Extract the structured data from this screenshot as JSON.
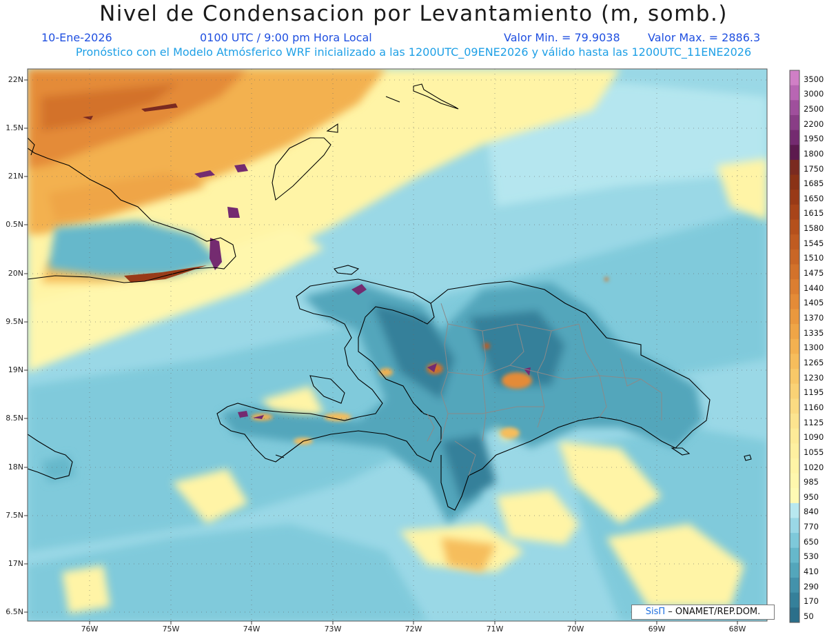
{
  "header": {
    "title": "Nivel de Condensacion por Levantamiento (m, somb.)",
    "date": "10-Ene-2026",
    "time": "0100 UTC / 9:00 pm Hora Local",
    "min_label": "Valor Min. = 79.9038",
    "max_label": "Valor Max. = 2886.3",
    "model_note": "Pronóstico con el Modelo Atmósferico WRF inicializado a las 1200UTC_09ENE2026 y válido hasta las  1200UTC_11ENE2026"
  },
  "axes": {
    "lat_labels": [
      "22N",
      "1.5N",
      "21N",
      "0.5N",
      "20N",
      "9.5N",
      "19N",
      "8.5N",
      "18N",
      "7.5N",
      "17N",
      "6.5N"
    ],
    "lon_labels": [
      "76W",
      "75W",
      "74W",
      "73W",
      "72W",
      "71W",
      "70W",
      "69W",
      "68W"
    ]
  },
  "credit": {
    "brand": "SisΠ",
    "text": "– ONAMET/REP.DOM."
  },
  "colorbar": {
    "labels": [
      "3500",
      "3000",
      "2500",
      "2200",
      "1950",
      "1800",
      "1750",
      "1685",
      "1650",
      "1615",
      "1580",
      "1545",
      "1510",
      "1475",
      "1440",
      "1405",
      "1370",
      "1335",
      "1300",
      "1265",
      "1230",
      "1195",
      "1160",
      "1125",
      "1090",
      "1055",
      "1020",
      "985",
      "950",
      "840",
      "770",
      "650",
      "530",
      "410",
      "290",
      "170",
      "50"
    ],
    "colors": [
      "#d07fc6",
      "#b866b3",
      "#9f4f9c",
      "#893d86",
      "#742b70",
      "#5c1a4e",
      "#7a2a20",
      "#8a3216",
      "#993a17",
      "#a84419",
      "#b5501c",
      "#c05b21",
      "#c96626",
      "#d3722b",
      "#dc7e31",
      "#e48b37",
      "#ea983e",
      "#efa546",
      "#f3b150",
      "#f6bd5c",
      "#f8c868",
      "#fad275",
      "#fbdb82",
      "#fce48f",
      "#fdeb98",
      "#fef0a0",
      "#fff4a6",
      "#fff7ad",
      "#fffab4",
      "#b8e8f0",
      "#9ad8e6",
      "#7ec9da",
      "#66b8cb",
      "#53a6bb",
      "#4392ab",
      "#35809a",
      "#2b6f8a"
    ]
  },
  "cities_note": ""
}
